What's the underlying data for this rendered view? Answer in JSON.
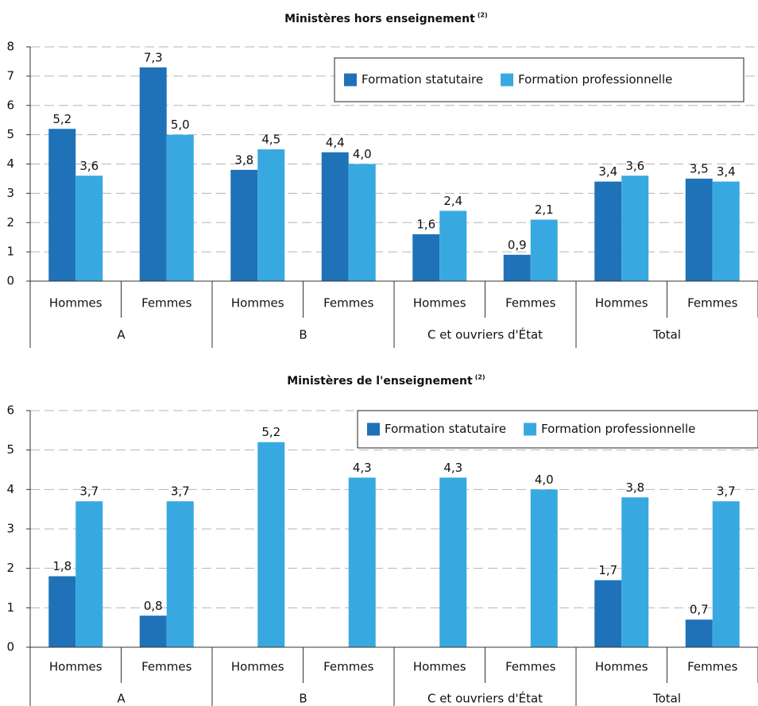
{
  "chart_data": [
    {
      "type": "bar",
      "title": "Ministères hors enseignement",
      "title_superscript": "(2)",
      "categories": [
        "Hommes",
        "Femmes",
        "Hommes",
        "Femmes",
        "Hommes",
        "Femmes",
        "Hommes",
        "Femmes"
      ],
      "groups": [
        "A",
        "B",
        "C et ouvriers d'État",
        "Total"
      ],
      "series": [
        {
          "name": "Formation statutaire",
          "color": "#1f72b8",
          "values": [
            5.2,
            7.3,
            3.8,
            4.4,
            1.6,
            0.9,
            3.4,
            3.5
          ],
          "value_labels": [
            "5,2",
            "7,3",
            "3,8",
            "4,4",
            "1,6",
            "0,9",
            "3,4",
            "3,5"
          ]
        },
        {
          "name": "Formation professionnelle",
          "color": "#38a9e0",
          "values": [
            3.6,
            5.0,
            4.5,
            4.0,
            2.4,
            2.1,
            3.6,
            3.4
          ],
          "value_labels": [
            "3,6",
            "5,0",
            "4,5",
            "4,0",
            "2,4",
            "2,1",
            "3,6",
            "3,4"
          ]
        }
      ],
      "ylim": [
        0,
        8
      ],
      "yticks": [
        0,
        1,
        2,
        3,
        4,
        5,
        6,
        7,
        8
      ],
      "grid": true,
      "legend": "top-right"
    },
    {
      "type": "bar",
      "title": "Ministères de l'enseignement",
      "title_superscript": "(2)",
      "categories": [
        "Hommes",
        "Femmes",
        "Hommes",
        "Femmes",
        "Hommes",
        "Femmes",
        "Hommes",
        "Femmes"
      ],
      "groups": [
        "A",
        "B",
        "C et ouvriers d'État",
        "Total"
      ],
      "series": [
        {
          "name": "Formation statutaire",
          "color": "#1f72b8",
          "values": [
            1.8,
            0.8,
            null,
            null,
            null,
            null,
            1.7,
            0.7
          ],
          "value_labels": [
            "1,8",
            "0,8",
            null,
            null,
            null,
            null,
            "1,7",
            "0,7"
          ]
        },
        {
          "name": "Formation professionnelle",
          "color": "#38a9e0",
          "values": [
            3.7,
            3.7,
            5.2,
            4.3,
            4.3,
            4.0,
            3.8,
            3.7
          ],
          "value_labels": [
            "3,7",
            "3,7",
            "5,2",
            "4,3",
            "4,3",
            "4,0",
            "3,8",
            "3,7"
          ]
        }
      ],
      "ylim": [
        0,
        6
      ],
      "yticks": [
        0,
        1,
        2,
        3,
        4,
        5,
        6
      ],
      "grid": true,
      "legend": "top-right"
    }
  ]
}
